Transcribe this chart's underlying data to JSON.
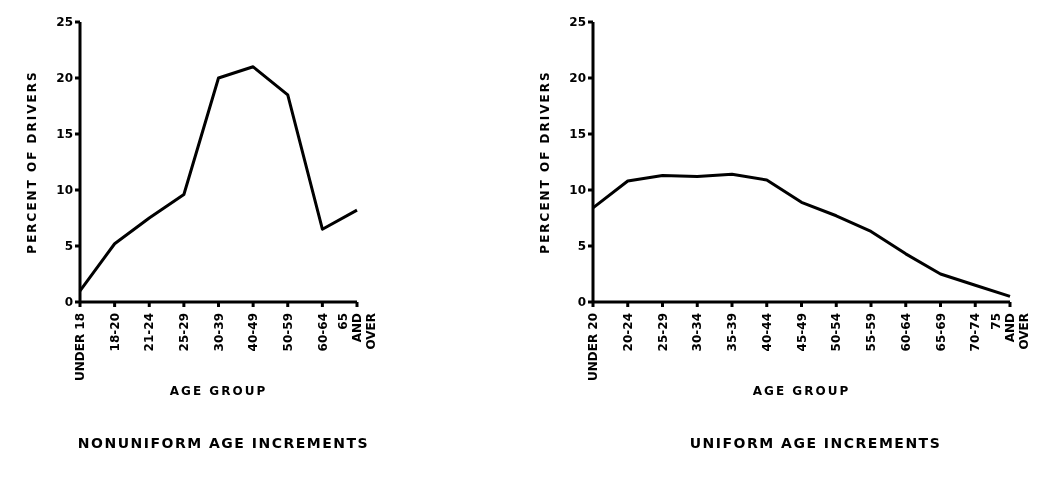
{
  "chart_data": [
    {
      "type": "line",
      "title": "NONUNIFORM AGE INCREMENTS",
      "xlabel": "AGE GROUP",
      "ylabel": "PERCENT OF DRIVERS",
      "categories": [
        "UNDER 18",
        "18-20",
        "21-24",
        "25-29",
        "30-39",
        "40-49",
        "50-59",
        "60-64",
        "65\nAND\nOVER"
      ],
      "series": [
        {
          "color": "#000000",
          "values": [
            1,
            5.2,
            7.5,
            9.6,
            20,
            21,
            18.5,
            6.5,
            8.2
          ]
        }
      ],
      "ylim": [
        0,
        25
      ],
      "yticks": [
        0,
        5,
        10,
        15,
        20,
        25
      ],
      "grid": false,
      "legend": false,
      "marker": "none",
      "line_style": "solid"
    },
    {
      "type": "line",
      "title": "UNIFORM AGE INCREMENTS",
      "xlabel": "AGE GROUP",
      "ylabel": "PERCENT OF DRIVERS",
      "categories": [
        "UNDER 20",
        "20-24",
        "25-29",
        "30-34",
        "35-39",
        "40-44",
        "45-49",
        "50-54",
        "55-59",
        "60-64",
        "65-69",
        "70-74",
        "75\nAND\nOVER"
      ],
      "series": [
        {
          "color": "#000000",
          "values": [
            8.4,
            10.8,
            11.3,
            11.2,
            11.4,
            10.9,
            8.9,
            7.7,
            6.3,
            4.3,
            2.5,
            1.5,
            0.5
          ]
        }
      ],
      "ylim": [
        0,
        25
      ],
      "yticks": [
        0,
        5,
        10,
        15,
        20,
        25
      ],
      "grid": false,
      "legend": false,
      "marker": "none",
      "line_style": "solid"
    }
  ]
}
